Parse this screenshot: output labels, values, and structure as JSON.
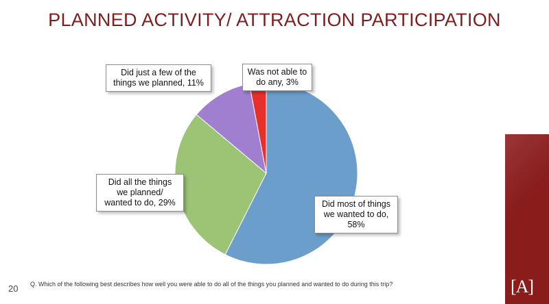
{
  "slide": {
    "title": "PLANNED ACTIVITY/ ATTRACTION PARTICIPATION",
    "page_number": "20",
    "footnote": "Q.   Which of the following best describes how well you were able to do all of the things you planned and wanted to do during this trip?",
    "logo_text": "[A]",
    "accent_color": "#8a1c1c",
    "title_color": "#7f1d1d"
  },
  "chart_data": {
    "type": "pie",
    "title": "",
    "slices": [
      {
        "name": "Did most of things we wanted to do",
        "value": 58,
        "color": "#6b9ecb"
      },
      {
        "name": "Did all the things we planned/ wanted to do",
        "value": 29,
        "color": "#9bc475"
      },
      {
        "name": "Did just a few of the things we planned",
        "value": 11,
        "color": "#a07fd0"
      },
      {
        "name": "Was not able to do any",
        "value": 3,
        "color": "#e8302a"
      }
    ],
    "labels": [
      {
        "lines": [
          "Did most of things",
          "we wanted to do,",
          "58%"
        ]
      },
      {
        "lines": [
          "Did all the things",
          "we planned/",
          "wanted to do, 29%"
        ]
      },
      {
        "lines": [
          "Did just a few of the",
          "things we planned, 11%"
        ]
      },
      {
        "lines": [
          "Was not able to",
          "do any, 3%"
        ]
      }
    ]
  }
}
